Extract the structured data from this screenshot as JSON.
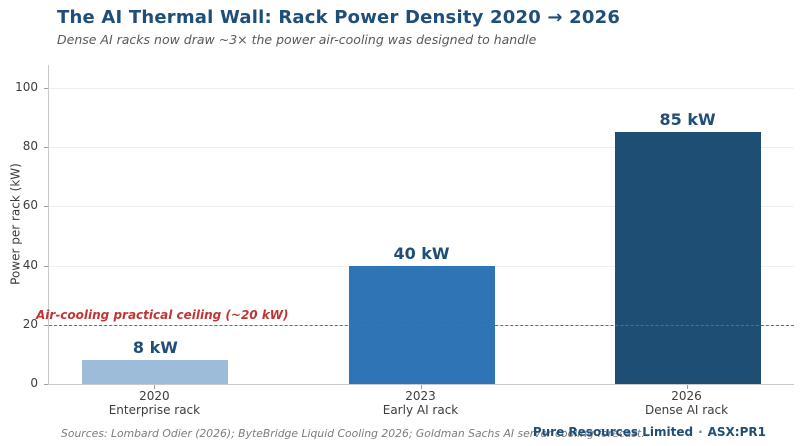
{
  "header": {
    "title": "The AI Thermal Wall: Rack Power Density 2020 → 2026",
    "subtitle": "Dense AI racks now draw ~3× the power air-cooling was designed to handle"
  },
  "chart_data": {
    "type": "bar",
    "title": "The AI Thermal Wall: Rack Power Density 2020 → 2026",
    "subtitle": "Dense AI racks now draw ~3× the power air-cooling was designed to handle",
    "categories": [
      "2020",
      "2023",
      "2026"
    ],
    "category_sublabels": [
      "Enterprise rack",
      "Early AI rack",
      "Dense AI rack"
    ],
    "values": [
      8,
      40,
      85
    ],
    "value_labels": [
      "8 kW",
      "40 kW",
      "85 kW"
    ],
    "unit": "kW",
    "bar_colors": [
      "#9dbbdb",
      "#2e75b6",
      "#1f4e74"
    ],
    "xlabel": "",
    "ylabel": "Power per rack (kW)",
    "yticks": [
      0,
      20,
      40,
      60,
      80,
      100
    ],
    "ylim": [
      0,
      107.8
    ],
    "grid": "horizontal",
    "legend": "none",
    "annotation": {
      "label": "Air-cooling practical ceiling (~20 kW)",
      "value": 20,
      "line_style": "dashed",
      "color": "#c23434"
    }
  },
  "footer": {
    "sources": "Sources: Lombard Odier (2026); ByteBridge Liquid Cooling 2026; Goldman Sachs AI server cooling forecast.",
    "brand": "Pure Resources Limited",
    "separator": "·",
    "ticker": "ASX:PR1"
  },
  "colors": {
    "accent_dark_blue": "#1f4e79",
    "bar_light": "#9dbbdb",
    "bar_medium": "#2e75b6",
    "bar_dark": "#1f4e74",
    "ceiling_red": "#c23434",
    "gridline": "#efefef",
    "axis": "#c9c9c9",
    "text_gray": "#595959"
  }
}
